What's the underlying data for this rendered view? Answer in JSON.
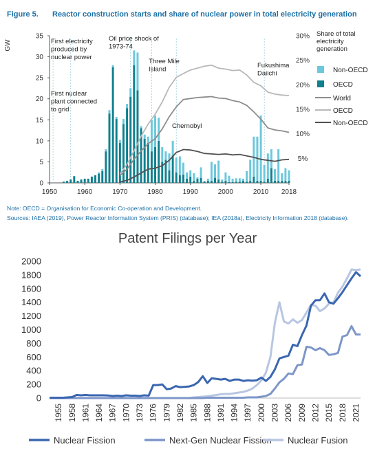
{
  "figure": {
    "label": "Figure 5.",
    "title": "Reactor construction starts and share of nuclear power in total electricity generation",
    "note": "Note: OECD = Organisation for Economic Co-operation and Development.",
    "sources": "Sources: IAEA (2019), Power Reactor Information System (PRIS) (database); IEA (2018a), Electricity Information 2018 (database)."
  },
  "colors": {
    "non_oecd_bar": "#6cc8dc",
    "oecd_bar": "#10808e",
    "world_line": "#8c8c8c",
    "oecd_line": "#b8b8b8",
    "nonoecd_line": "#505050",
    "title_blue": "#1b6fa6",
    "fission": "#3a66b0",
    "nextgen": "#7d96c8",
    "fusion": "#b8c6e2"
  },
  "chart_data": [
    {
      "type": "bar",
      "title": "Reactor construction starts and share of nuclear power in total electricity generation",
      "ylabel": "GW",
      "y2label": "Share of total electricity generation",
      "ylim": [
        0,
        35
      ],
      "y2lim": [
        0,
        30
      ],
      "yticks": [
        "0",
        "5",
        "10",
        "15",
        "20",
        "25",
        "30",
        "35"
      ],
      "y2ticks": [
        "5%",
        "10%",
        "15%",
        "20%",
        "25%",
        "30%"
      ],
      "xticks": [
        "1950",
        "1960",
        "1970",
        "1980",
        "1990",
        "2000",
        "2010",
        "2018"
      ],
      "legend": [
        "Non-OECD",
        "OECD",
        "World",
        "OECD",
        "Non-OECD"
      ],
      "annotations": [
        {
          "text": "First electricity produced by nuclear power",
          "lines": [
            "First electricity",
            "produced by",
            "nuclear power"
          ]
        },
        {
          "text": "First nuclear plant connected to grid",
          "lines": [
            "First nuclear",
            "plant connected",
            "to grid"
          ]
        },
        {
          "text": "Oil price shock of 1973-74",
          "lines": [
            "Oil price shock of",
            "1973-74"
          ]
        },
        {
          "text": "Three Mile Island",
          "lines": [
            "Three Mile",
            "Island"
          ]
        },
        {
          "text": "Chernobyl",
          "lines": [
            "Chernobyl"
          ]
        },
        {
          "text": "Fukushima Daiichi",
          "lines": [
            "Fukushima",
            "Daiichi"
          ]
        }
      ],
      "event_years": [
        1951,
        1956,
        1973,
        1979,
        1986,
        2011
      ],
      "bars": {
        "years": [
          1954,
          1955,
          1956,
          1957,
          1958,
          1959,
          1960,
          1961,
          1962,
          1963,
          1964,
          1965,
          1966,
          1967,
          1968,
          1969,
          1970,
          1971,
          1972,
          1973,
          1974,
          1975,
          1976,
          1977,
          1978,
          1979,
          1980,
          1981,
          1982,
          1983,
          1984,
          1985,
          1986,
          1987,
          1988,
          1989,
          1990,
          1991,
          1992,
          1993,
          1994,
          1995,
          1996,
          1997,
          1998,
          1999,
          2000,
          2001,
          2002,
          2003,
          2004,
          2005,
          2006,
          2007,
          2008,
          2009,
          2010,
          2011,
          2012,
          2013,
          2014,
          2015,
          2016,
          2017,
          2018
        ],
        "oecd": [
          0.3,
          0.5,
          0.8,
          1.6,
          0.5,
          0.8,
          1.0,
          1.0,
          1.5,
          1.8,
          2.2,
          2.8,
          7.5,
          16.5,
          27.5,
          15.2,
          9.5,
          14.0,
          17.8,
          20.5,
          28.0,
          22.0,
          13.0,
          10.5,
          9.5,
          7.5,
          8.5,
          10.0,
          5.0,
          5.5,
          3.0,
          6.5,
          2.5,
          1.8,
          2.0,
          1.0,
          1.5,
          0.5,
          1.0,
          1.2,
          0.3,
          0.5,
          0.5,
          1.2,
          0.8,
          0.3,
          0.5,
          0.2,
          0.2,
          0.3,
          0.3,
          0.5,
          0.3,
          0.5,
          1.5,
          0.5,
          0.5,
          0.3,
          1.0,
          3.5,
          0.5,
          0.5,
          0.5,
          0.5,
          0.5
        ],
        "non_oecd": [
          0,
          0,
          0,
          0,
          0,
          0,
          0,
          0,
          0,
          0,
          0.3,
          0.5,
          0.5,
          0.8,
          0.5,
          0.5,
          0.7,
          1.2,
          1.0,
          2.0,
          3.5,
          9.0,
          0.5,
          1.0,
          1.5,
          7.5,
          7.5,
          5.5,
          3.5,
          2.0,
          4.0,
          3.5,
          3.5,
          4.5,
          2.8,
          1.5,
          1.5,
          1.8,
          0.3,
          2.5,
          0.2,
          0.5,
          4.5,
          3.2,
          4.5,
          0.5,
          2.0,
          1.5,
          0.8,
          0.8,
          0.8,
          0.5,
          2.5,
          5.0,
          9.5,
          10.5,
          15.5,
          4.0,
          6.0,
          4.5,
          2.8,
          7.5,
          1.8,
          3.0,
          2.5
        ]
      },
      "lines": [
        {
          "name": "World",
          "years": [
            1970,
            1972,
            1974,
            1976,
            1978,
            1980,
            1982,
            1984,
            1986,
            1988,
            1990,
            1992,
            1994,
            1996,
            1998,
            2000,
            2002,
            2004,
            2006,
            2008,
            2010,
            2012,
            2014,
            2016,
            2018
          ],
          "values": [
            1.5,
            2.8,
            4.8,
            6.5,
            8.0,
            9.0,
            11.0,
            13.5,
            15.5,
            17.0,
            17.2,
            17.4,
            17.5,
            17.6,
            17.3,
            17.2,
            16.8,
            16.5,
            15.8,
            14.5,
            13.0,
            11.2,
            10.8,
            10.6,
            10.3
          ]
        },
        {
          "name": "OECD",
          "years": [
            1970,
            1972,
            1974,
            1976,
            1978,
            1980,
            1982,
            1984,
            1986,
            1988,
            1990,
            1992,
            1994,
            1996,
            1998,
            2000,
            2002,
            2004,
            2006,
            2008,
            2010,
            2012,
            2014,
            2016,
            2018
          ],
          "values": [
            1.8,
            3.8,
            6.5,
            9.5,
            12.0,
            14.0,
            16.5,
            19.5,
            21.5,
            22.3,
            23.0,
            23.4,
            23.8,
            24.0,
            23.4,
            23.2,
            22.9,
            23.0,
            22.0,
            20.5,
            19.8,
            18.5,
            18.1,
            17.9,
            17.8
          ]
        },
        {
          "name": "Non-OECD",
          "years": [
            1970,
            1972,
            1974,
            1976,
            1978,
            1980,
            1982,
            1984,
            1986,
            1988,
            1990,
            1992,
            1994,
            1996,
            1998,
            2000,
            2002,
            2004,
            2006,
            2008,
            2010,
            2012,
            2014,
            2016,
            2018
          ],
          "values": [
            0.2,
            0.5,
            1.2,
            2.0,
            2.8,
            3.0,
            3.5,
            4.6,
            6.2,
            6.8,
            6.7,
            6.4,
            6.0,
            5.9,
            5.8,
            5.9,
            5.7,
            5.8,
            5.5,
            5.2,
            4.8,
            4.6,
            4.4,
            4.7,
            4.8
          ]
        }
      ]
    },
    {
      "type": "line",
      "title": "Patent Filings per Year",
      "ylim": [
        0,
        2000
      ],
      "yticks": [
        "0",
        "200",
        "400",
        "600",
        "800",
        "1000",
        "1200",
        "1400",
        "1600",
        "1800",
        "2000"
      ],
      "xticks": [
        "1955",
        "1958",
        "1961",
        "1964",
        "1967",
        "1970",
        "1973",
        "1976",
        "1979",
        "1982",
        "1985",
        "1988",
        "1991",
        "1994",
        "1997",
        "2000",
        "2003",
        "2006",
        "2009",
        "2012",
        "2015",
        "2018",
        "2021"
      ],
      "years": [
        1953,
        1954,
        1955,
        1956,
        1957,
        1958,
        1959,
        1960,
        1961,
        1962,
        1963,
        1964,
        1965,
        1966,
        1967,
        1968,
        1969,
        1970,
        1971,
        1972,
        1973,
        1974,
        1975,
        1976,
        1977,
        1978,
        1979,
        1980,
        1981,
        1982,
        1983,
        1984,
        1985,
        1986,
        1987,
        1988,
        1989,
        1990,
        1991,
        1992,
        1993,
        1994,
        1995,
        1996,
        1997,
        1998,
        1999,
        2000,
        2001,
        2002,
        2003,
        2004,
        2005,
        2006,
        2007,
        2008,
        2009,
        2010,
        2011,
        2012,
        2013,
        2014,
        2015,
        2016,
        2017,
        2018,
        2019,
        2020,
        2021,
        2022
      ],
      "series": [
        {
          "name": "Nuclear Fission",
          "values": [
            5,
            5,
            5,
            5,
            10,
            15,
            45,
            40,
            45,
            40,
            40,
            40,
            40,
            38,
            30,
            35,
            30,
            40,
            35,
            35,
            30,
            40,
            35,
            190,
            190,
            200,
            130,
            140,
            175,
            160,
            165,
            170,
            190,
            235,
            320,
            220,
            290,
            280,
            270,
            280,
            250,
            270,
            270,
            250,
            260,
            255,
            260,
            300,
            250,
            310,
            420,
            580,
            600,
            620,
            780,
            760,
            920,
            1060,
            1350,
            1430,
            1430,
            1530,
            1400,
            1380,
            1460,
            1550,
            1650,
            1750,
            1840,
            1780
          ]
        },
        {
          "name": "Next-Gen Nuclear Fission",
          "values": [
            0,
            0,
            0,
            0,
            0,
            0,
            0,
            0,
            0,
            0,
            0,
            0,
            0,
            0,
            0,
            0,
            0,
            0,
            0,
            0,
            0,
            0,
            0,
            0,
            0,
            0,
            0,
            0,
            0,
            0,
            0,
            0,
            0,
            0,
            0,
            5,
            5,
            5,
            5,
            5,
            5,
            5,
            5,
            5,
            10,
            10,
            10,
            20,
            30,
            60,
            140,
            230,
            280,
            360,
            350,
            480,
            490,
            750,
            740,
            700,
            730,
            700,
            630,
            640,
            660,
            900,
            920,
            1050,
            930,
            930
          ]
        },
        {
          "name": "Nuclear Fusion",
          "values": [
            0,
            0,
            0,
            0,
            0,
            0,
            0,
            0,
            0,
            0,
            0,
            0,
            0,
            0,
            0,
            0,
            0,
            0,
            0,
            0,
            0,
            0,
            0,
            0,
            0,
            0,
            0,
            0,
            0,
            0,
            0,
            0,
            10,
            15,
            20,
            25,
            35,
            45,
            55,
            60,
            60,
            70,
            80,
            90,
            110,
            140,
            190,
            260,
            370,
            600,
            1100,
            1400,
            1120,
            1090,
            1150,
            1100,
            1140,
            1250,
            1360,
            1350,
            1270,
            1310,
            1380,
            1400,
            1540,
            1630,
            1750,
            1880,
            1870,
            1880
          ]
        }
      ]
    }
  ]
}
